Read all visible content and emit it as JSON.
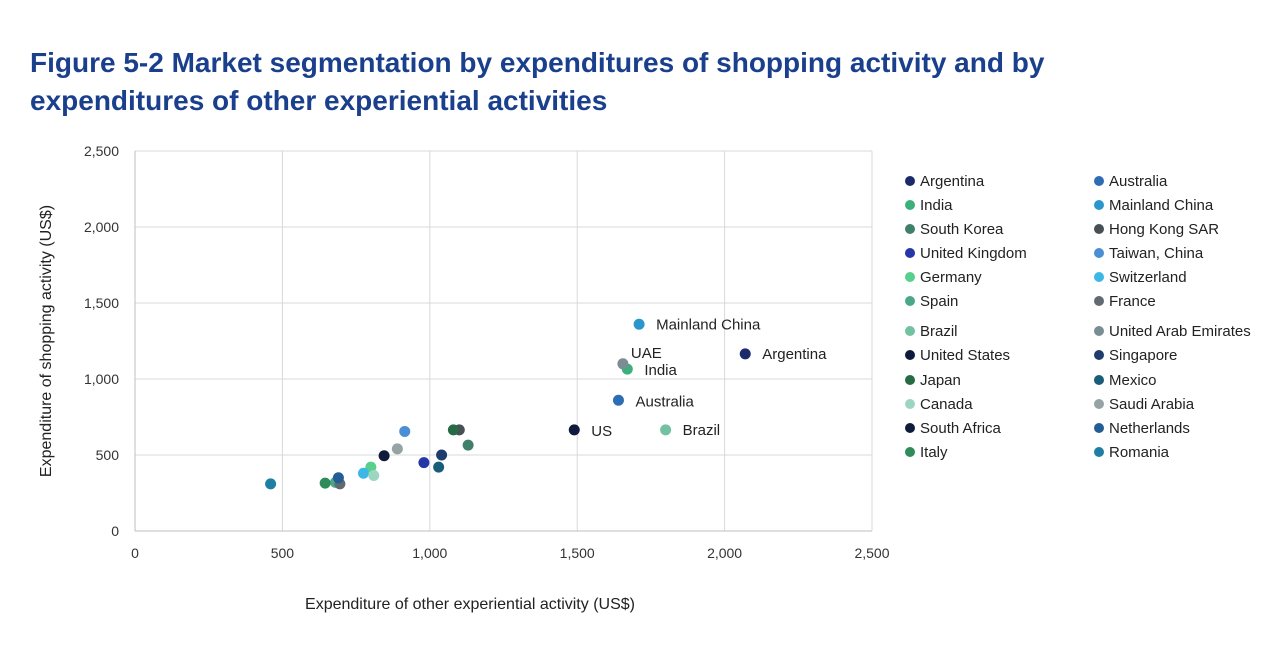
{
  "title": "Figure 5-2 Market segmentation by expenditures of shopping activity and by expenditures of other experiential activities",
  "chart_data": {
    "type": "scatter",
    "title": "Figure 5-2 Market segmentation by expenditures of shopping activity and by expenditures of other experiential activities",
    "xlabel": "Expenditure of other experiential activity (US$)",
    "ylabel": "Expenditure of shopping activity (US$)",
    "xlim": [
      0,
      2500
    ],
    "ylim": [
      0,
      2500
    ],
    "xticks": [
      "0",
      "500",
      "1,000",
      "1,500",
      "2,000",
      "2,500"
    ],
    "yticks": [
      "0",
      "500",
      "1,000",
      "1,500",
      "2,000",
      "2,500"
    ],
    "grid": true,
    "legend_position": "right",
    "series": [
      {
        "name": "Argentina",
        "color": "#1b2a6b",
        "x": 2070,
        "y": 1165,
        "label": "Argentina"
      },
      {
        "name": "Australia",
        "color": "#2e6db4",
        "x": 1640,
        "y": 860,
        "label": "Australia"
      },
      {
        "name": "India",
        "color": "#3bb07a",
        "x": 1670,
        "y": 1065,
        "label": "India"
      },
      {
        "name": "Mainland China",
        "color": "#2a96cc",
        "x": 1710,
        "y": 1360,
        "label": "Mainland China"
      },
      {
        "name": "South Korea",
        "color": "#3f7f6b",
        "x": 1130,
        "y": 565,
        "label": ""
      },
      {
        "name": "Hong Kong SAR",
        "color": "#484f55",
        "x": 1100,
        "y": 665,
        "label": ""
      },
      {
        "name": "United Kingdom",
        "color": "#2536a8",
        "x": 980,
        "y": 450,
        "label": ""
      },
      {
        "name": "Taiwan, China",
        "color": "#4a8fd6",
        "x": 915,
        "y": 655,
        "label": ""
      },
      {
        "name": "Germany",
        "color": "#56d08c",
        "x": 800,
        "y": 420,
        "label": ""
      },
      {
        "name": "Switzerland",
        "color": "#3cb7e6",
        "x": 775,
        "y": 380,
        "label": ""
      },
      {
        "name": "Spain",
        "color": "#4aa886",
        "x": 680,
        "y": 320,
        "label": ""
      },
      {
        "name": "France",
        "color": "#5f6a72",
        "x": 695,
        "y": 310,
        "label": ""
      },
      {
        "name": "Brazil",
        "color": "#72c2a2",
        "x": 1800,
        "y": 665,
        "label": "Brazil"
      },
      {
        "name": "United Arab Emirates",
        "color": "#7a8c94",
        "x": 1655,
        "y": 1100,
        "label": "UAE"
      },
      {
        "name": "United States",
        "color": "#0f1a3f",
        "x": 1490,
        "y": 665,
        "label": "US"
      },
      {
        "name": "Singapore",
        "color": "#1e3d6c",
        "x": 1040,
        "y": 500,
        "label": ""
      },
      {
        "name": "Japan",
        "color": "#276b45",
        "x": 1080,
        "y": 665,
        "label": ""
      },
      {
        "name": "Mexico",
        "color": "#195d78",
        "x": 1030,
        "y": 420,
        "label": ""
      },
      {
        "name": "Canada",
        "color": "#9dd6c0",
        "x": 810,
        "y": 365,
        "label": ""
      },
      {
        "name": "Saudi Arabia",
        "color": "#96a3a5",
        "x": 890,
        "y": 540,
        "label": ""
      },
      {
        "name": "South Africa",
        "color": "#101c3c",
        "x": 845,
        "y": 495,
        "label": ""
      },
      {
        "name": "Netherlands",
        "color": "#225d96",
        "x": 690,
        "y": 350,
        "label": ""
      },
      {
        "name": "Italy",
        "color": "#2f8c5a",
        "x": 645,
        "y": 315,
        "label": ""
      },
      {
        "name": "Romania",
        "color": "#1f7ea4",
        "x": 460,
        "y": 310,
        "label": ""
      }
    ]
  }
}
